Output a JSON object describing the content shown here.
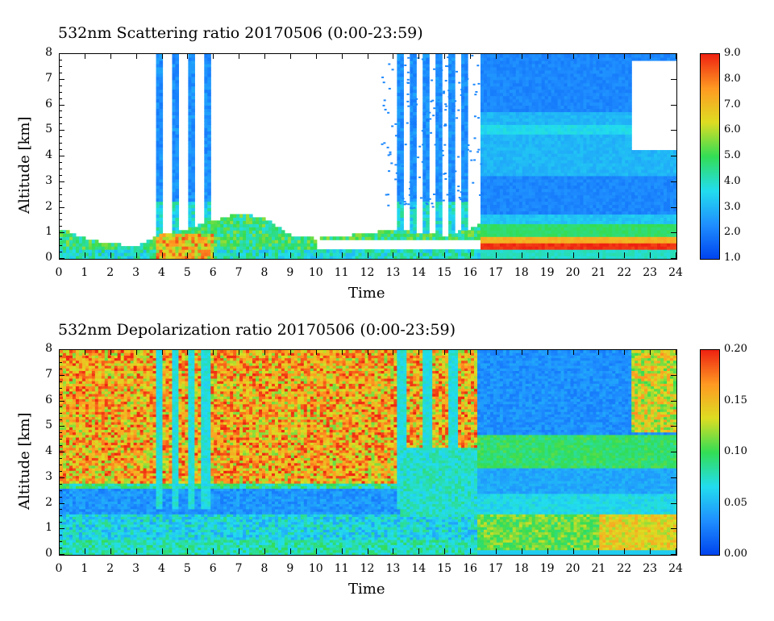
{
  "chart_data": [
    {
      "type": "heatmap",
      "title": "532nm Scattering ratio  20170506 (0:00-23:59)",
      "xlabel": "Time",
      "ylabel": "Altitude [km]",
      "xlim": [
        0,
        24
      ],
      "ylim": [
        0,
        8
      ],
      "x_ticks": [
        "0",
        "1",
        "2",
        "3",
        "4",
        "5",
        "6",
        "7",
        "8",
        "9",
        "10",
        "11",
        "12",
        "13",
        "14",
        "15",
        "16",
        "17",
        "18",
        "19",
        "20",
        "21",
        "22",
        "23",
        "24"
      ],
      "y_ticks": [
        "0",
        "1",
        "2",
        "3",
        "4",
        "5",
        "6",
        "7",
        "8"
      ],
      "colorbar": {
        "range": [
          1.0,
          9.0
        ],
        "ticks": [
          "1.0",
          "2.0",
          "3.0",
          "4.0",
          "5.0",
          "6.0",
          "7.0",
          "8.0",
          "9.0"
        ],
        "colors": [
          "#0044ee",
          "#1f8fff",
          "#22ddee",
          "#33dd55",
          "#dddd22",
          "#ff9922",
          "#ee2211"
        ]
      },
      "cloud_columns_hours": [
        3.9,
        4.5,
        5.1,
        5.7,
        13.3,
        13.8,
        14.3,
        14.8,
        15.3,
        15.8
      ],
      "boundary_layer_top_km": [
        1.2,
        0.8,
        0.6,
        0.5,
        1.0,
        1.2,
        1.5,
        1.8,
        1.6,
        0.9,
        0.8,
        0.9,
        1.0,
        1.2,
        1.0,
        0.9,
        1.2,
        1.6,
        1.6,
        1.6,
        1.6,
        1.6,
        1.7,
        1.7,
        1.7
      ]
    },
    {
      "type": "heatmap",
      "title": "532nm Depolarization ratio  20170506 (0:00-23:59)",
      "xlabel": "Time",
      "ylabel": "Altitude [km]",
      "xlim": [
        0,
        24
      ],
      "ylim": [
        0,
        8
      ],
      "x_ticks": [
        "0",
        "1",
        "2",
        "3",
        "4",
        "5",
        "6",
        "7",
        "8",
        "9",
        "10",
        "11",
        "12",
        "13",
        "14",
        "15",
        "16",
        "17",
        "18",
        "19",
        "20",
        "21",
        "22",
        "23",
        "24"
      ],
      "y_ticks": [
        "0",
        "1",
        "2",
        "3",
        "4",
        "5",
        "6",
        "7",
        "8"
      ],
      "colorbar": {
        "range": [
          0.0,
          0.2
        ],
        "ticks": [
          "0.00",
          "0.05",
          "0.10",
          "0.15",
          "0.20"
        ],
        "colors": [
          "#0044ee",
          "#1f8fff",
          "#22ddee",
          "#33dd55",
          "#dddd22",
          "#ff9922",
          "#ee2211"
        ]
      },
      "dust_layer_km": [
        2.8,
        8.0
      ],
      "clear_layer_km": [
        1.6,
        2.6
      ]
    }
  ]
}
